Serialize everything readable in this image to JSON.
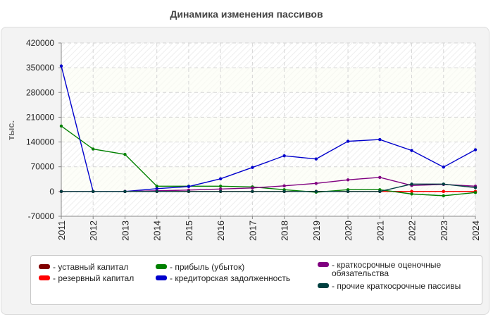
{
  "title": "Динамика изменения пассивов",
  "chart_data": {
    "type": "line",
    "ylabel": "тыс.",
    "xlabel": "",
    "x": [
      "2011",
      "2012",
      "2013",
      "2014",
      "2015",
      "2016",
      "2017",
      "2018",
      "2019",
      "2020",
      "2021",
      "2022",
      "2023",
      "2024"
    ],
    "ylim": [
      -70000,
      420000
    ],
    "yticks": [
      -70000,
      0,
      70000,
      140000,
      210000,
      280000,
      350000,
      420000
    ],
    "ytick_labels": [
      "-70000",
      "0",
      "70000",
      "140000",
      "210000",
      "280000",
      "350000",
      "420000"
    ],
    "grid": true,
    "series": [
      {
        "name": "- уставный капитал",
        "color": "#800000",
        "values": [
          0,
          0,
          0,
          0,
          0,
          0,
          0,
          0,
          0,
          0,
          0,
          0,
          0,
          0
        ]
      },
      {
        "name": "- резервный капитал",
        "color": "#ff0000",
        "values": [
          0,
          0,
          0,
          0,
          0,
          0,
          0,
          0,
          0,
          0,
          0,
          0,
          0,
          0
        ]
      },
      {
        "name": "- прибыль (убыток)",
        "color": "#008000",
        "values": [
          185000,
          120000,
          105000,
          15000,
          15000,
          15000,
          13000,
          5000,
          -2000,
          5000,
          5000,
          -7000,
          -12000,
          -3000
        ]
      },
      {
        "name": "- кредиторская задолженность",
        "color": "#0000cc",
        "values": [
          355000,
          0,
          0,
          8000,
          14000,
          36000,
          68000,
          101000,
          92000,
          142000,
          147000,
          116000,
          69000,
          118000
        ]
      },
      {
        "name": "- краткосрочные оценочные обязательства",
        "color": "#800080",
        "values": [
          0,
          0,
          0,
          2000,
          4000,
          7000,
          10000,
          16000,
          23000,
          33000,
          40000,
          17000,
          20000,
          15000
        ]
      },
      {
        "name": "- прочие краткосрочные пассивы",
        "color": "#004040",
        "values": [
          0,
          0,
          0,
          0,
          0,
          0,
          0,
          0,
          0,
          0,
          0,
          21000,
          21000,
          11000
        ]
      }
    ]
  }
}
